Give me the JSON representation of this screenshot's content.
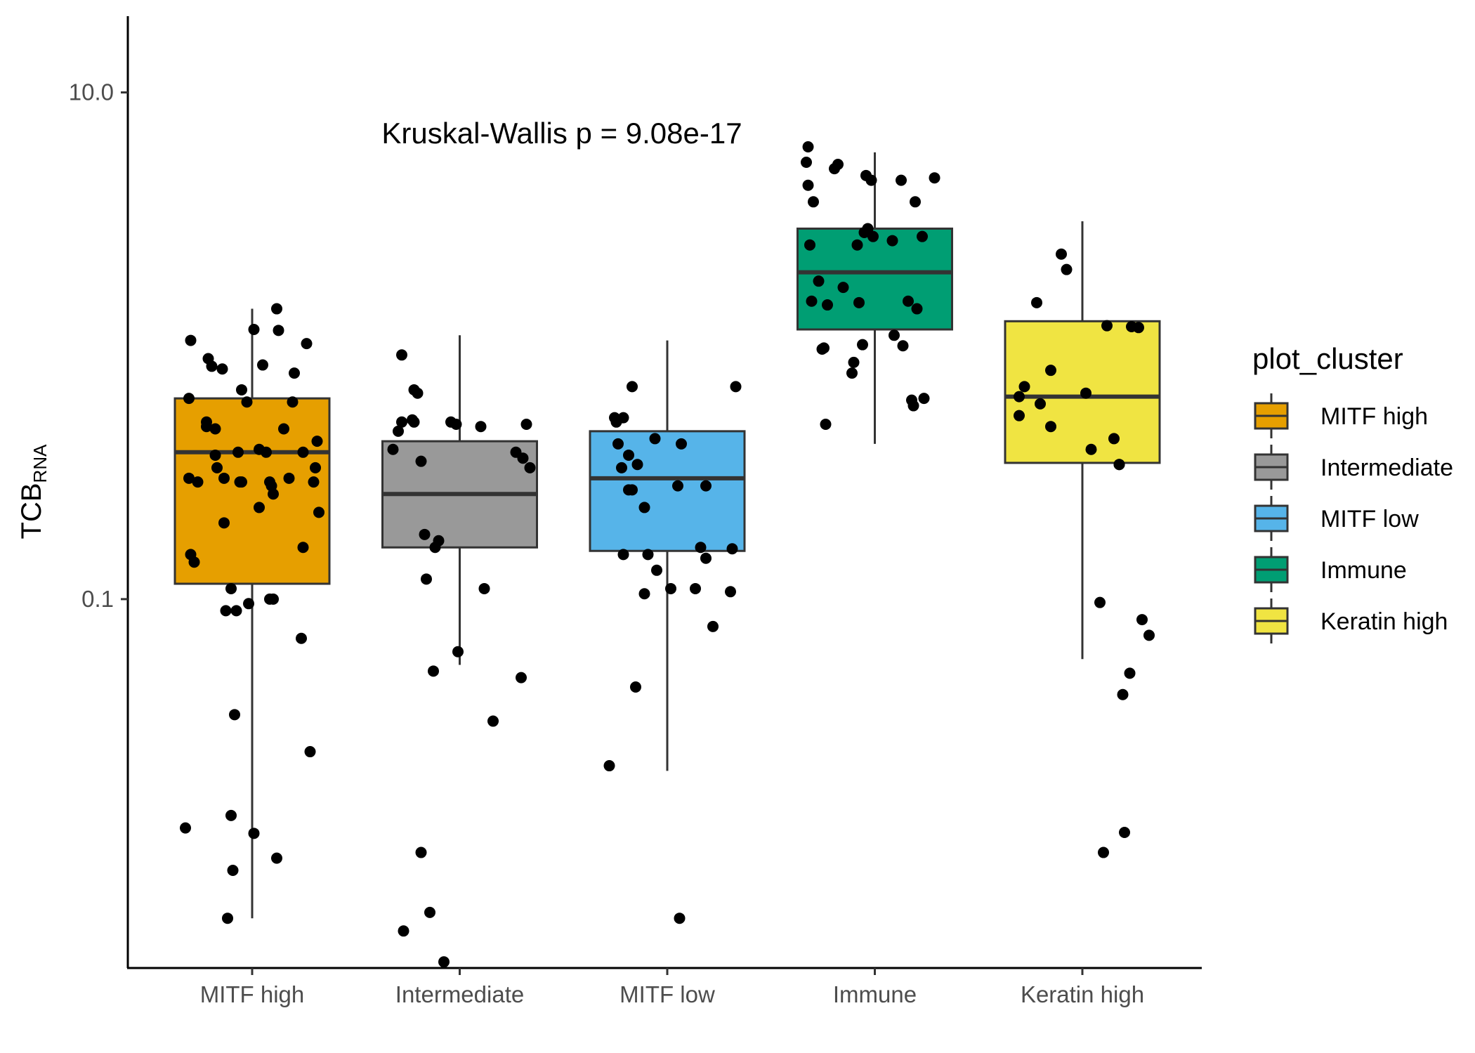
{
  "chart_data": {
    "type": "boxplot",
    "y_scale": "log10",
    "ylim": [
      0.0035,
      20.0
    ],
    "y_ticks": [
      0.1,
      10.0
    ],
    "y_tick_labels": [
      "0.1",
      "10.0"
    ],
    "ylabel_main": "TCB",
    "ylabel_sub": "RNA",
    "xlabel": "",
    "annotation": "Kruskal-Wallis p = 9.08e-17",
    "legend": {
      "title": "plot_cluster",
      "position": "right",
      "items": [
        "MITF high",
        "Intermediate",
        "MITF low",
        "Immune",
        "Keratin high"
      ]
    },
    "categories": [
      "MITF high",
      "Intermediate",
      "MITF low",
      "Immune",
      "Keratin high"
    ],
    "colors": {
      "MITF high": "#E69F00",
      "Intermediate": "#999999",
      "MITF low": "#56B4E9",
      "Immune": "#009E73",
      "Keratin high": "#F0E442"
    },
    "boxes": [
      {
        "name": "MITF high",
        "whisker_low": 0.0055,
        "q1": 0.115,
        "median": 0.38,
        "q3": 0.62,
        "whisker_high": 1.4
      },
      {
        "name": "Intermediate",
        "whisker_low": 0.055,
        "q1": 0.16,
        "median": 0.26,
        "q3": 0.42,
        "whisker_high": 1.1
      },
      {
        "name": "MITF low",
        "whisker_low": 0.021,
        "q1": 0.155,
        "median": 0.3,
        "q3": 0.46,
        "whisker_high": 1.05
      },
      {
        "name": "Immune",
        "whisker_low": 0.41,
        "q1": 1.16,
        "median": 1.95,
        "q3": 2.9,
        "whisker_high": 5.8
      },
      {
        "name": "Keratin high",
        "whisker_low": 0.058,
        "q1": 0.345,
        "median": 0.63,
        "q3": 1.25,
        "whisker_high": 3.1
      }
    ],
    "points": [
      {
        "name": "MITF high",
        "jitter": [
          -0.38,
          -0.35,
          -0.36,
          -0.36,
          -0.35,
          -0.33,
          -0.31,
          -0.26,
          -0.26,
          -0.25,
          -0.23,
          -0.21,
          -0.21,
          -0.2,
          -0.17,
          -0.16,
          -0.16,
          -0.15,
          -0.14,
          -0.12,
          -0.12,
          -0.11,
          -0.1,
          -0.09,
          -0.08,
          -0.07,
          -0.06,
          -0.06,
          -0.03,
          -0.02,
          0.01,
          0.01,
          0.04,
          0.04,
          0.06,
          0.08,
          0.1,
          0.1,
          0.11,
          0.12,
          0.12,
          0.14,
          0.14,
          0.15,
          0.18,
          0.21,
          0.23,
          0.24,
          0.28,
          0.29,
          0.29,
          0.31,
          0.33,
          0.35,
          0.36,
          0.37,
          0.38
        ],
        "values": [
          0.0125,
          0.15,
          0.3,
          0.62,
          1.05,
          0.14,
          0.29,
          0.5,
          0.48,
          0.89,
          0.83,
          0.47,
          0.37,
          0.33,
          0.81,
          0.3,
          0.2,
          0.09,
          0.0055,
          0.11,
          0.014,
          0.0085,
          0.035,
          0.09,
          0.38,
          0.29,
          0.29,
          0.67,
          0.6,
          0.096,
          1.16,
          0.0119,
          0.23,
          0.39,
          0.84,
          0.38,
          0.1,
          0.29,
          0.28,
          0.26,
          0.1,
          0.0095,
          1.4,
          1.15,
          0.47,
          0.3,
          0.6,
          0.78,
          0.07,
          0.38,
          0.16,
          1.02,
          0.025,
          0.29,
          0.33,
          0.42,
          0.22
        ]
      },
      {
        "name": "Intermediate",
        "jitter": [
          -0.38,
          -0.35,
          -0.33,
          -0.33,
          -0.32,
          -0.27,
          -0.26,
          -0.26,
          -0.24,
          -0.22,
          -0.22,
          -0.2,
          -0.19,
          -0.17,
          -0.15,
          -0.14,
          -0.12,
          -0.09,
          -0.05,
          -0.02,
          -0.01,
          0.12,
          0.14,
          0.19,
          0.32,
          0.35,
          0.36,
          0.38,
          0.4
        ],
        "values": [
          0.39,
          0.46,
          0.5,
          0.92,
          0.0049,
          0.51,
          0.5,
          0.67,
          0.65,
          0.01,
          0.35,
          0.18,
          0.12,
          0.0058,
          0.052,
          0.16,
          0.17,
          0.0037,
          0.5,
          0.49,
          0.062,
          0.48,
          0.11,
          0.033,
          0.38,
          0.049,
          0.36,
          0.49,
          0.33
        ]
      },
      {
        "name": "MITF low",
        "jitter": [
          -0.33,
          -0.28,
          -0.3,
          -0.29,
          -0.26,
          -0.25,
          -0.25,
          -0.22,
          -0.22,
          -0.2,
          -0.2,
          -0.18,
          -0.17,
          -0.13,
          -0.13,
          -0.11,
          -0.07,
          -0.06,
          0.02,
          0.06,
          0.07,
          0.08,
          0.16,
          0.19,
          0.22,
          0.22,
          0.26,
          0.36,
          0.37,
          0.39
        ],
        "values": [
          0.022,
          0.41,
          0.52,
          0.5,
          0.33,
          0.15,
          0.52,
          0.37,
          0.27,
          0.69,
          0.27,
          0.045,
          0.34,
          0.23,
          0.105,
          0.15,
          0.43,
          0.13,
          0.11,
          0.28,
          0.0055,
          0.41,
          0.11,
          0.16,
          0.28,
          0.145,
          0.078,
          0.107,
          0.158,
          0.69
        ]
      },
      {
        "name": "Immune",
        "jitter": [
          -0.39,
          -0.38,
          -0.38,
          -0.37,
          -0.36,
          -0.35,
          -0.32,
          -0.3,
          -0.29,
          -0.28,
          -0.27,
          -0.23,
          -0.21,
          -0.18,
          -0.13,
          -0.12,
          -0.1,
          -0.09,
          -0.07,
          -0.06,
          -0.05,
          -0.04,
          -0.02,
          -0.01,
          0.1,
          0.11,
          0.15,
          0.16,
          0.19,
          0.21,
          0.22,
          0.23,
          0.24,
          0.27,
          0.28,
          0.34
        ],
        "values": [
          5.3,
          6.1,
          4.3,
          2.5,
          1.5,
          3.7,
          1.8,
          0.97,
          0.98,
          0.49,
          1.45,
          5.0,
          5.2,
          1.7,
          0.78,
          0.86,
          2.5,
          1.48,
          1.01,
          2.8,
          4.7,
          2.9,
          4.5,
          2.7,
          2.6,
          1.1,
          4.5,
          1.0,
          1.5,
          0.61,
          0.58,
          3.7,
          1.4,
          2.7,
          0.62,
          4.6
        ]
      },
      {
        "name": "Keratin high",
        "jitter": [
          -0.36,
          -0.36,
          -0.33,
          -0.26,
          -0.24,
          -0.18,
          -0.18,
          -0.12,
          -0.09,
          0.02,
          0.05,
          0.1,
          0.12,
          0.14,
          0.18,
          0.21,
          0.21,
          0.23,
          0.24,
          0.27,
          0.28,
          0.32,
          0.34,
          0.38
        ],
        "values": [
          0.53,
          0.63,
          0.69,
          1.48,
          0.59,
          0.48,
          0.8,
          2.3,
          2.0,
          0.65,
          0.39,
          0.097,
          0.01,
          1.2,
          0.43,
          0.34,
          0.34,
          0.042,
          0.012,
          0.051,
          1.19,
          1.18,
          0.083,
          0.072
        ]
      }
    ]
  }
}
